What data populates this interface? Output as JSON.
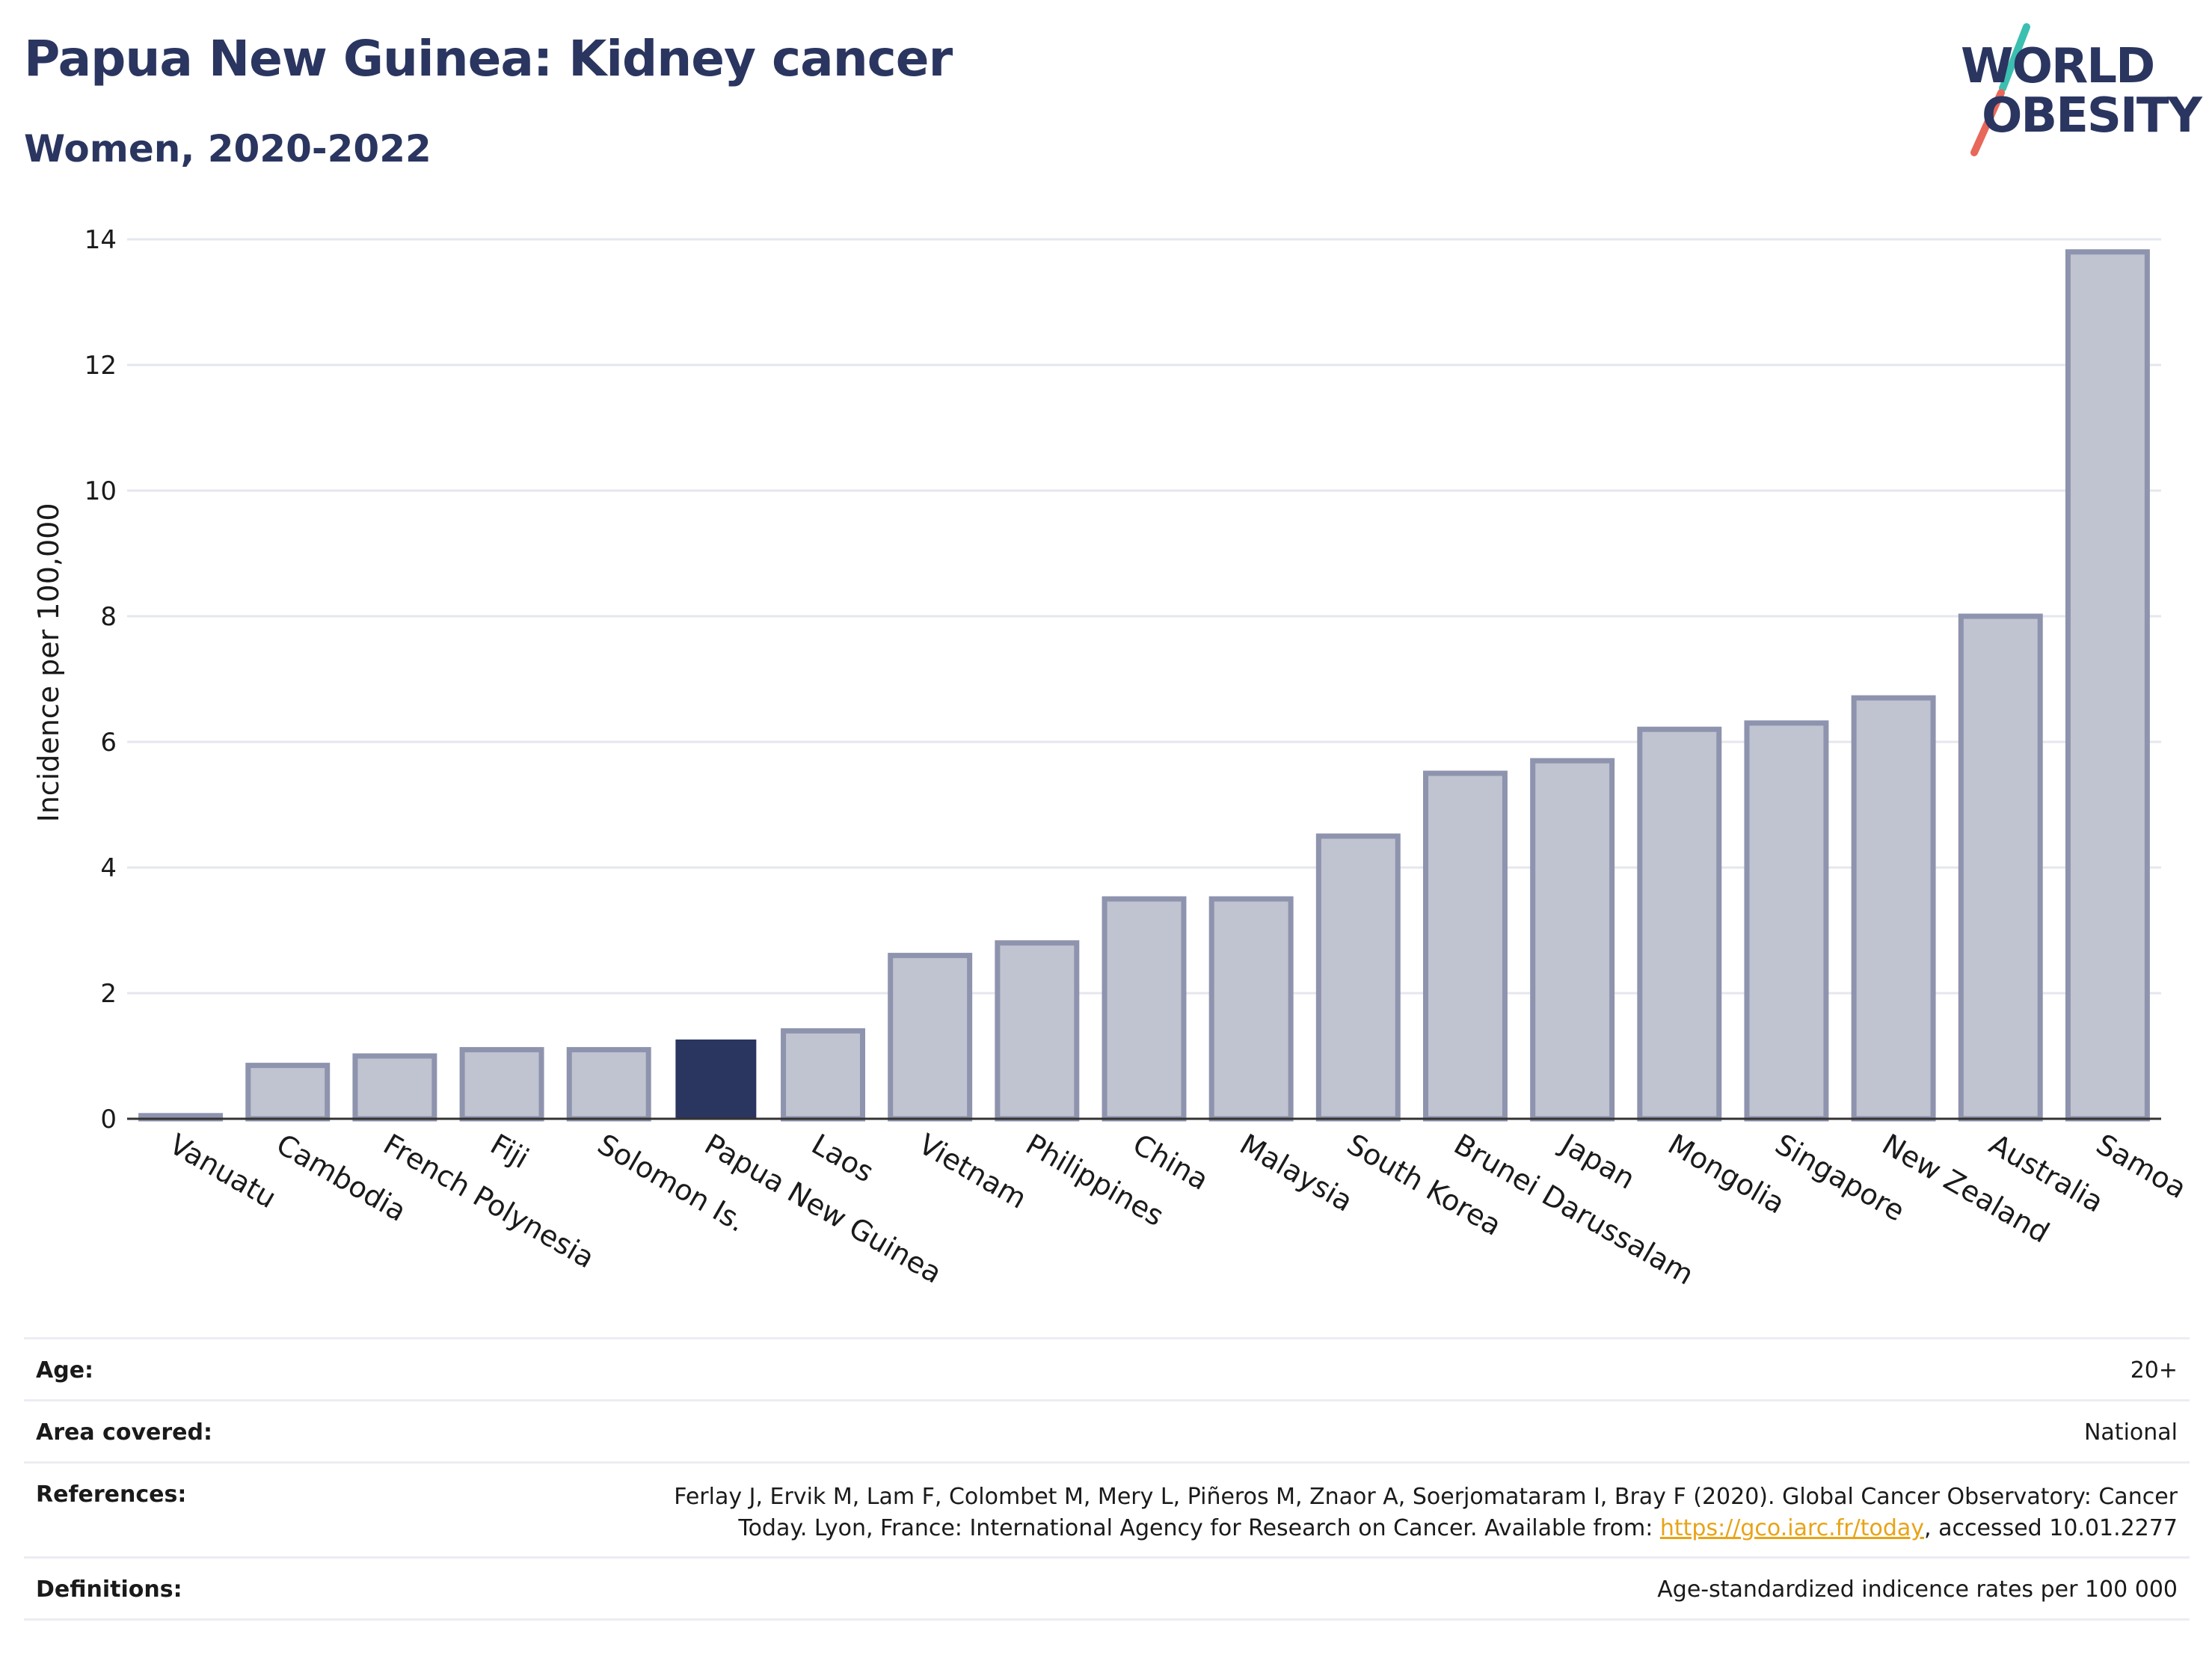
{
  "header": {
    "title": "Papua New Guinea: Kidney cancer",
    "subtitle": "Women, 2020-2022"
  },
  "logo": {
    "line1": "WORLD",
    "line2": "OBESITY",
    "slash_colors": [
      "#3bbfb0",
      "#e8675a"
    ]
  },
  "colors": {
    "highlight_bar": "#2a3560",
    "other_bar": "#c0c3d0",
    "other_bar_border": "#8e93ae",
    "title": "#2a3560",
    "link": "#e8a317"
  },
  "chart_data": {
    "type": "bar",
    "title": "Papua New Guinea: Kidney cancer",
    "subtitle": "Women, 2020-2022",
    "ylabel": "Incidence per 100,000",
    "xlabel": "",
    "ylim": [
      0,
      14
    ],
    "yticks": [
      0,
      2,
      4,
      6,
      8,
      10,
      12,
      14
    ],
    "grid": true,
    "highlight": "Papua New Guinea",
    "categories": [
      "Vanuatu",
      "Cambodia",
      "French Polynesia",
      "Fiji",
      "Solomon Is.",
      "Papua New Guinea",
      "Laos",
      "Vietnam",
      "Philippines",
      "China",
      "Malaysia",
      "South Korea",
      "Brunei Darussalam",
      "Japan",
      "Mongolia",
      "Singapore",
      "New Zealand",
      "Australia",
      "Samoa"
    ],
    "values": [
      0.05,
      0.85,
      1.0,
      1.1,
      1.1,
      1.25,
      1.4,
      2.6,
      2.8,
      3.5,
      3.5,
      4.5,
      5.5,
      5.7,
      6.2,
      6.3,
      6.7,
      8.0,
      13.8
    ]
  },
  "meta": {
    "age_label": "Age:",
    "age_value": "20+",
    "area_label": "Area covered:",
    "area_value": "National",
    "references_label": "References:",
    "references_line1": "Ferlay J, Ervik M, Lam F, Colombet M, Mery L, Piñeros M, Znaor A, Soerjomataram I, Bray F (2020). Global Cancer Observatory: Cancer",
    "references_line2_pre": "Today. Lyon, France: International Agency for Research on Cancer. Available from: ",
    "references_link": "https://gco.iarc.fr/today",
    "references_line2_post": ", accessed 10.01.2277",
    "definitions_label": "Definitions:",
    "definitions_value": "Age-standardized indicence rates per 100 000"
  }
}
